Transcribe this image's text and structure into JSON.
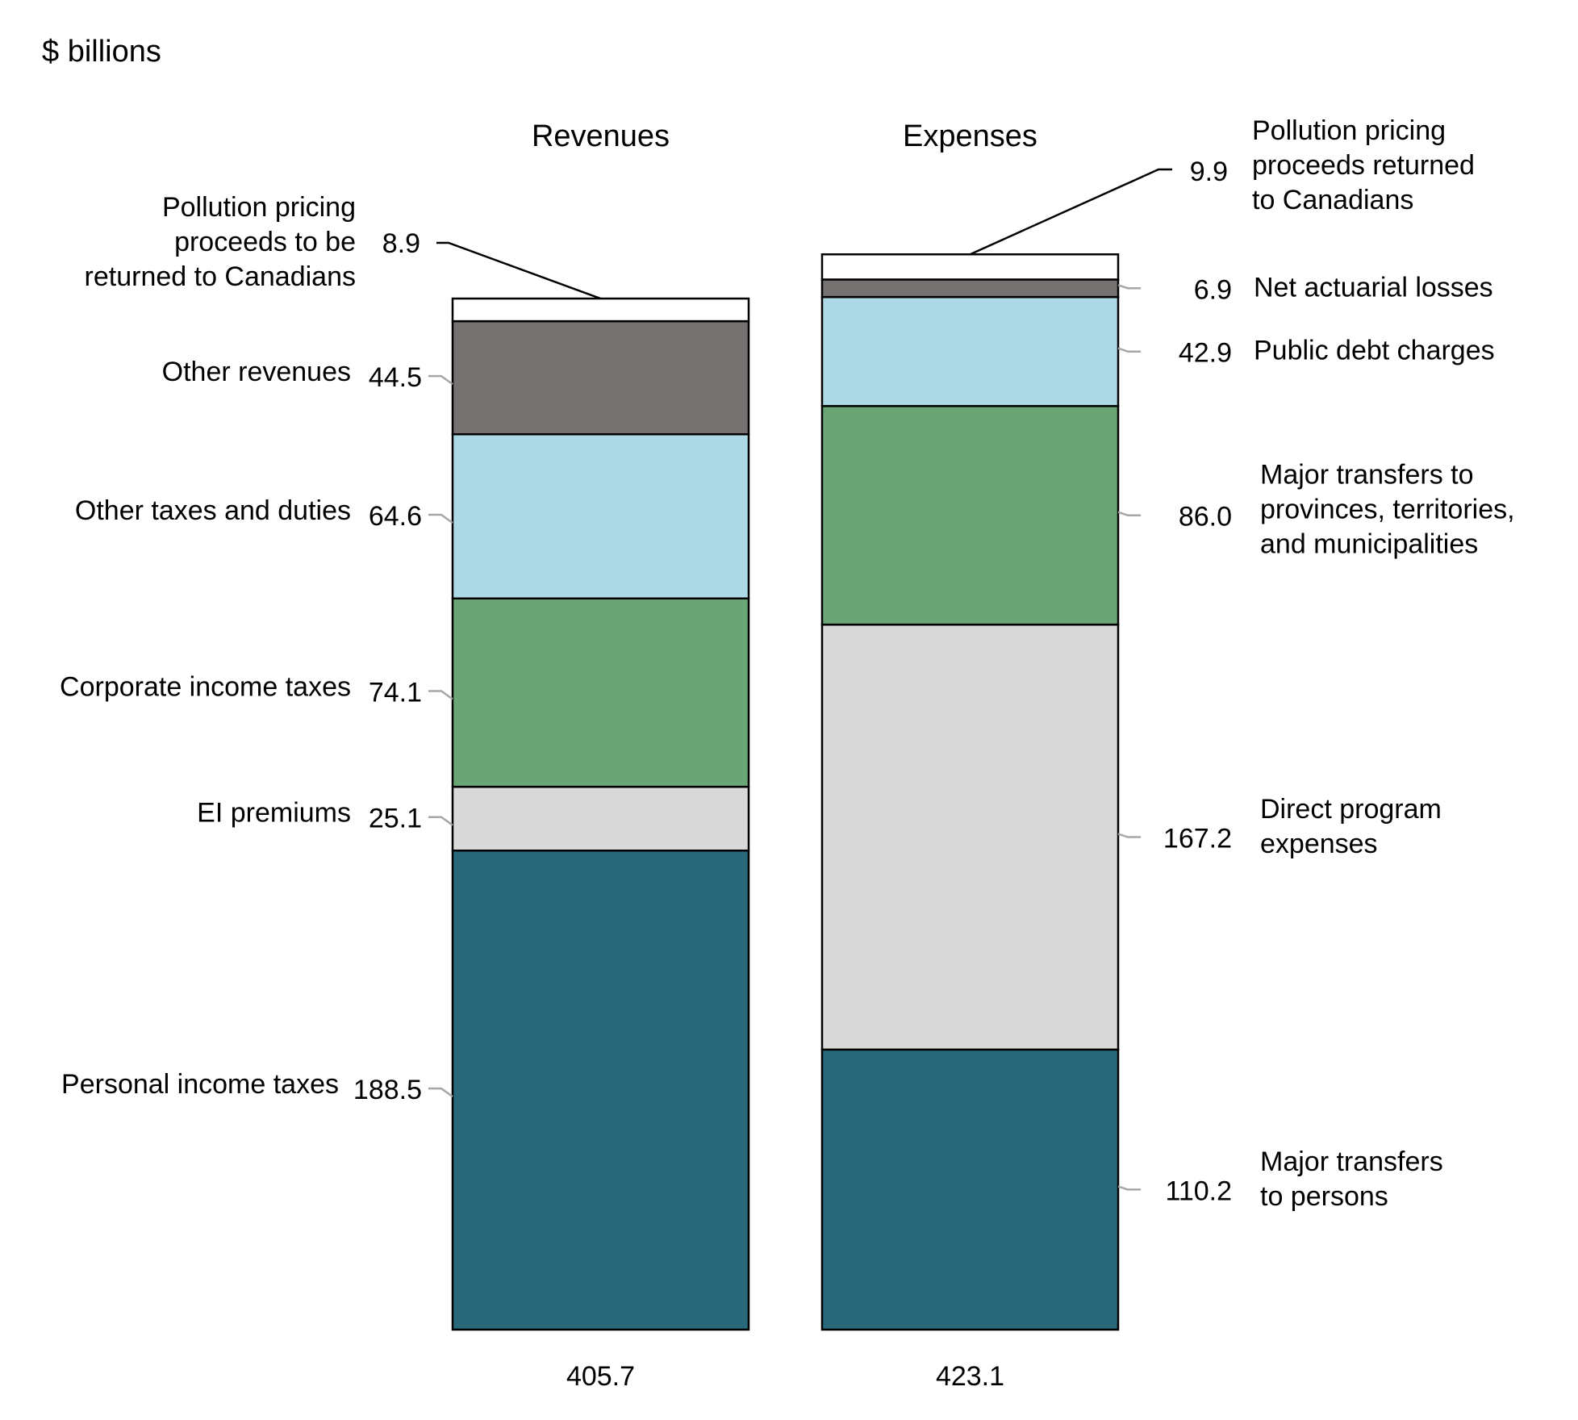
{
  "chart_data": {
    "type": "bar",
    "subtype": "stacked",
    "unit_label": "$ billions",
    "categories": [
      "Revenues",
      "Expenses"
    ],
    "totals": [
      "405.7",
      "423.1"
    ],
    "colors": {
      "white": "#ffffff",
      "dark_gray": "#767171",
      "light_blue": "#add8e6",
      "green": "#6aa575",
      "light_gray": "#d9d9d9",
      "teal": "#28687a",
      "outline": "#000000",
      "leader": "#a6a6a6"
    },
    "stacks": [
      {
        "category": "Revenues",
        "label_side": "left",
        "segments": [
          {
            "name": "Personal income taxes",
            "value": 188.5,
            "value_label": "188.5",
            "color": "#28687a"
          },
          {
            "name": "EI premiums",
            "value": 25.1,
            "value_label": "25.1",
            "color": "#d9d9d9"
          },
          {
            "name": "Corporate income taxes",
            "value": 74.1,
            "value_label": "74.1",
            "color": "#6aa575"
          },
          {
            "name": "Other taxes and duties",
            "value": 64.6,
            "value_label": "64.6",
            "color": "#add8e6"
          },
          {
            "name": "Other revenues",
            "value": 44.5,
            "value_label": "44.5",
            "color": "#767171"
          },
          {
            "name": "Pollution pricing\nproceeds to be\nreturned to Canadians",
            "value": 8.9,
            "value_label": "8.9",
            "color": "#ffffff"
          }
        ]
      },
      {
        "category": "Expenses",
        "label_side": "right",
        "segments": [
          {
            "name": "Major transfers\nto persons",
            "value": 110.2,
            "value_label": "110.2",
            "color": "#28687a"
          },
          {
            "name": "Direct program\nexpenses",
            "value": 167.2,
            "value_label": "167.2",
            "color": "#d9d9d9"
          },
          {
            "name": "Major transfers to\nprovinces, territories,\nand municipalities",
            "value": 86.0,
            "value_label": "86.0",
            "color": "#6aa575"
          },
          {
            "name": "Public debt charges",
            "value": 42.9,
            "value_label": "42.9",
            "color": "#add8e6"
          },
          {
            "name": "Net actuarial losses",
            "value": 6.9,
            "value_label": "6.9",
            "color": "#767171"
          },
          {
            "name": "Pollution pricing\nproceeds returned\nto Canadians",
            "value": 9.9,
            "value_label": "9.9",
            "color": "#ffffff"
          }
        ]
      }
    ]
  }
}
